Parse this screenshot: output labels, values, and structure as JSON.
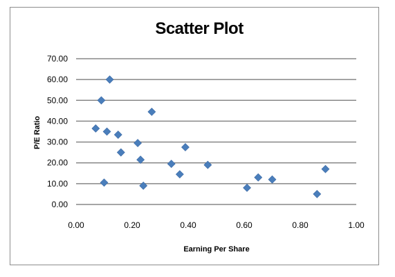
{
  "chart_data": {
    "type": "scatter",
    "title": "Scatter Plot",
    "xlabel": "Earning Per Share",
    "ylabel": "P/E Ratio",
    "xlim": [
      0,
      1
    ],
    "ylim": [
      0,
      70
    ],
    "x_ticks": [
      "0.00",
      "0.20",
      "0.40",
      "0.60",
      "0.80",
      "1.00"
    ],
    "y_ticks": [
      "0.00",
      "10.00",
      "20.00",
      "30.00",
      "40.00",
      "50.00",
      "60.00",
      "70.00"
    ],
    "grid": true,
    "marker": "diamond",
    "marker_color": "#4a7ebb",
    "series": [
      {
        "points": [
          {
            "x": 0.07,
            "y": 36.5
          },
          {
            "x": 0.09,
            "y": 50.0
          },
          {
            "x": 0.1,
            "y": 10.5
          },
          {
            "x": 0.11,
            "y": 35.0
          },
          {
            "x": 0.12,
            "y": 60.0
          },
          {
            "x": 0.15,
            "y": 33.5
          },
          {
            "x": 0.16,
            "y": 25.0
          },
          {
            "x": 0.22,
            "y": 29.5
          },
          {
            "x": 0.23,
            "y": 21.5
          },
          {
            "x": 0.24,
            "y": 9.0
          },
          {
            "x": 0.27,
            "y": 44.5
          },
          {
            "x": 0.34,
            "y": 19.5
          },
          {
            "x": 0.37,
            "y": 14.5
          },
          {
            "x": 0.39,
            "y": 27.5
          },
          {
            "x": 0.47,
            "y": 19.0
          },
          {
            "x": 0.61,
            "y": 8.0
          },
          {
            "x": 0.65,
            "y": 13.0
          },
          {
            "x": 0.7,
            "y": 12.0
          },
          {
            "x": 0.86,
            "y": 5.0
          },
          {
            "x": 0.89,
            "y": 17.0
          }
        ]
      }
    ]
  }
}
